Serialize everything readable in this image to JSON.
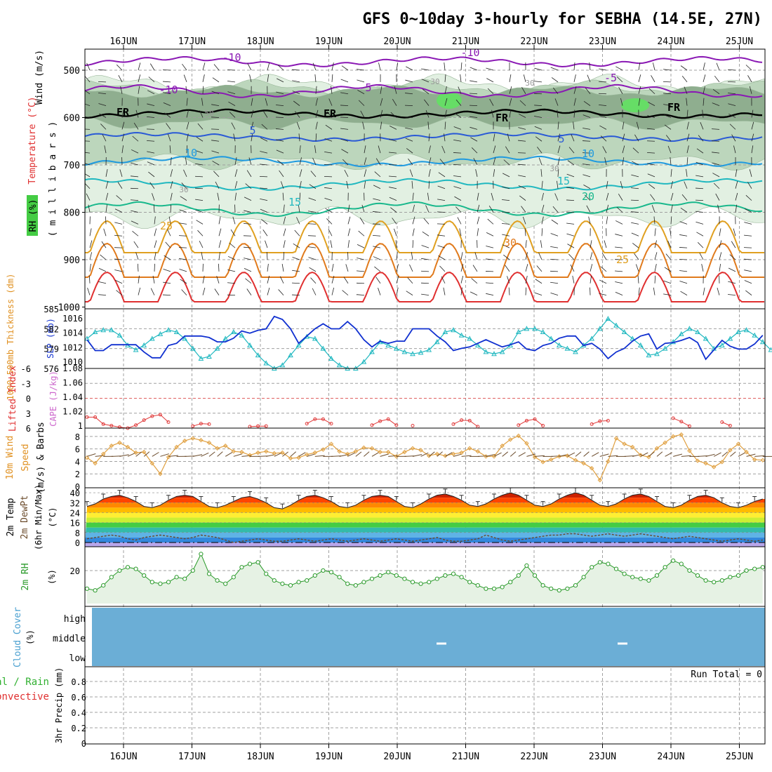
{
  "title": "GFS 0~10day 3-hourly for SEBHA (14.5E, 27N)",
  "date_labels": [
    "16JUN",
    "17JUN",
    "18JUN",
    "19JUN",
    "20JUN",
    "21JUN",
    "22JUN",
    "23JUN",
    "24JUN",
    "25JUN"
  ],
  "colors": {
    "bg": "#ffffff",
    "grid": "#a0a0a0",
    "axis": "#000000",
    "temp_purple": "#8a18b4",
    "freeze": "#000000",
    "temp_blue": "#2a5ad6",
    "temp_sky": "#1f9ae0",
    "temp_cyan": "#20b8c0",
    "temp_green": "#19b88c",
    "temp_orange": "#e0a020",
    "temp_dorange": "#e07a1c",
    "temp_red": "#e03030",
    "rh_light": "#e2f0e2",
    "rh_mid": "#bcd6bc",
    "rh_dark": "#8fae8f",
    "rh_bright": "#66dd66",
    "thick": "#20b8c0",
    "slp": "#1030d0",
    "li": "#e03a3a",
    "cape": "#cc66cc",
    "wind": "#e0a040",
    "barb": "#6a4a2a",
    "rh2m": "#2a9a2a",
    "rh2m_fill": "#e6f2e4",
    "cloud": "#6baed6",
    "precip_total": "#30b030",
    "precip_conv": "#e03030"
  },
  "panels": {
    "upper": {
      "ylabel_rh": "RH (%)",
      "ylabel_temp": "Temperature (°C)",
      "ylabel_wind": "Wind (m/s)",
      "ylabel_p": "( m i l l i b a r s )",
      "yticks": [
        "500",
        "600",
        "700",
        "800",
        "900",
        "1000"
      ],
      "contour_labels": [
        "-10",
        "-10",
        "-10",
        "5",
        "-5",
        "FR",
        "FR",
        "FR",
        "FR",
        "5",
        "5",
        "10",
        "10",
        "15",
        "15",
        "20",
        "25",
        "30",
        "25",
        "30",
        "30",
        "30",
        "50",
        "30"
      ]
    },
    "slp": {
      "ylabel_thick": "1000-500mb Thickness (dm)",
      "ylabel_slp": "SLP (mb)",
      "left_ticks": [
        "585",
        "582",
        "579",
        "576"
      ],
      "right_ticks": [
        "1016",
        "1014",
        "1012",
        "1010"
      ]
    },
    "li": {
      "ylabel_li": "Lifted Index",
      "ylabel_cape": "CAPE (J/kg)",
      "left_ticks": [
        "-6",
        "-3",
        "0",
        "3",
        "6"
      ],
      "right_ticks": [
        "1.08",
        "1.06",
        "1.04",
        "1.02",
        "1"
      ]
    },
    "wind10": {
      "ylabel1": "10m Wind",
      "ylabel2": "Speed",
      "ylabel3": "(m/s) & Barbs",
      "ticks": [
        "8",
        "6",
        "4",
        "2",
        "0"
      ]
    },
    "temp2m": {
      "ylabel1": "2m Temp",
      "ylabel2": "2m DewPt",
      "ylabel3": "(6hr Min/Max)",
      "ylabel4": "(°C)",
      "ticks": [
        "40",
        "32",
        "24",
        "16",
        "8",
        "0"
      ]
    },
    "rh2m": {
      "ylabel1": "2m RH",
      "ylabel2": "(%)",
      "ticks": [
        "20"
      ]
    },
    "cloud": {
      "ylabel1": "Cloud Cover",
      "ylabel2": "(%)",
      "levels": [
        "high",
        "middle",
        "low"
      ]
    },
    "precip": {
      "ylabel1": "Total / Rain",
      "ylabel2": "Convective",
      "ylabel3": "3hr Precip (mm)",
      "run_total": "Run Total = 0",
      "ticks": [
        "0.8",
        "0.6",
        "0.4",
        "0.2",
        "0"
      ]
    }
  },
  "chart_data": [
    {
      "type": "line",
      "title": "",
      "xlabel": "",
      "series": [
        {
          "name": "1000-500mb Thickness (dm)",
          "values": [
            580.5,
            581.5,
            581.8,
            581.8,
            581,
            579.5,
            578.8,
            579.5,
            580.5,
            581.2,
            581.8,
            581.5,
            580.5,
            579,
            577.5,
            577.8,
            579,
            580.5,
            581.5,
            581,
            579.5,
            578,
            576.8,
            576,
            576.5,
            578,
            579.5,
            580.8,
            580.5,
            579,
            577.5,
            576.5,
            576,
            576,
            577,
            578.5,
            580,
            579.5,
            579,
            578.5,
            578.2,
            578.4,
            578.8,
            580,
            581.5,
            581.8,
            581,
            580.5,
            579.5,
            578.5,
            578.2,
            578.5,
            579.5,
            581.5,
            582,
            582,
            581.5,
            580.5,
            579.5,
            579,
            578.5,
            579.5,
            580.5,
            582,
            583.5,
            582.5,
            581.5,
            580.5,
            579.5,
            578,
            578.2,
            579,
            580,
            581.2,
            582,
            581.5,
            580.5,
            579,
            579.5,
            580.5,
            581.5,
            581.8,
            581,
            580,
            578.8
          ]
        },
        {
          "name": "SLP (mb)",
          "values": [
            1013,
            1011.5,
            1011.5,
            1012.3,
            1012.3,
            1012.3,
            1012.3,
            1011.3,
            1010.5,
            1010.5,
            1012.2,
            1012.5,
            1013.5,
            1013.5,
            1013.5,
            1013.3,
            1012.7,
            1012.7,
            1013.2,
            1014.2,
            1013.9,
            1014.3,
            1014.5,
            1016.2,
            1015.8,
            1014.5,
            1012.5,
            1013.5,
            1014.5,
            1015.2,
            1014.5,
            1014.5,
            1015.5,
            1014.5,
            1013,
            1012,
            1012.8,
            1012.5,
            1012.8,
            1012.8,
            1014.5,
            1014.5,
            1014.5,
            1013.5,
            1012.7,
            1011.5,
            1011.8,
            1012,
            1012.5,
            1013,
            1012.5,
            1012,
            1012.3,
            1012.7,
            1011.7,
            1011.5,
            1012.2,
            1012.5,
            1013.2,
            1013.5,
            1013.5,
            1012.2,
            1012.5,
            1011.7,
            1010.4,
            1011.3,
            1011.8,
            1012.8,
            1013.5,
            1013.8,
            1011.7,
            1012.5,
            1012.6,
            1012.9,
            1013.3,
            1012.6,
            1010.3,
            1011.6,
            1012.9,
            1012.1,
            1011.7,
            1011.7,
            1012.4,
            1013.6
          ]
        }
      ],
      "ylim": [
        576,
        585
      ]
    },
    {
      "type": "line",
      "title": "",
      "series": [
        {
          "name": "Lifted Index",
          "values": [
            3.8,
            3.8,
            5.2,
            5.5,
            5.8,
            6,
            5.4,
            4.4,
            3.6,
            3.3,
            4.8,
            null,
            null,
            5.6,
            5.1,
            5.2,
            null,
            null,
            null,
            null,
            5.7,
            5.6,
            5.6,
            null,
            null,
            null,
            null,
            5.1,
            4.2,
            4.2,
            5.1,
            null,
            null,
            null,
            null,
            5.4,
            4.6,
            4.2,
            5.4,
            null,
            5.5,
            null,
            null,
            null,
            null,
            5.2,
            4.4,
            4.5,
            5.7,
            null,
            null,
            null,
            null,
            5.4,
            4.5,
            4.2,
            5.5,
            null,
            null,
            null,
            null,
            null,
            5.2,
            4.6,
            4.5,
            null,
            null,
            null,
            null,
            null,
            null,
            null,
            4.0,
            4.7,
            5.6,
            null,
            null,
            null,
            4.8,
            5.5
          ]
        }
      ],
      "ylim": [
        6,
        -6
      ]
    },
    {
      "type": "line",
      "title": "",
      "series": [
        {
          "name": "10m Wind Speed (m/s)",
          "values": [
            4.6,
            3.7,
            5.2,
            6.5,
            7.0,
            6.3,
            5.4,
            5.5,
            3.7,
            2.0,
            4.7,
            6.3,
            7.3,
            7.7,
            7.4,
            7.0,
            6.1,
            6.5,
            5.6,
            5.5,
            5.0,
            5.4,
            5.6,
            5.3,
            5.4,
            4.5,
            4.6,
            5.1,
            5.4,
            5.9,
            6.8,
            5.6,
            5.2,
            5.6,
            6.2,
            6.1,
            5.5,
            5.5,
            4.8,
            5.5,
            6.1,
            5.8,
            4.9,
            5.2,
            4.9,
            5.2,
            5.4,
            6.1,
            5.6,
            4.8,
            4.8,
            6.5,
            7.5,
            8.1,
            6.9,
            4.7,
            3.9,
            4.3,
            4.8,
            4.9,
            4.2,
            3.7,
            2.9,
            1.0,
            4.0,
            7.7,
            6.8,
            6.3,
            5.0,
            4.7,
            6.1,
            7.0,
            8.0,
            8.3,
            5.7,
            4.1,
            3.7,
            3.1,
            3.9,
            5.8,
            6.8,
            5.5,
            4.3,
            4.2
          ]
        }
      ],
      "ylim": [
        0,
        9
      ]
    },
    {
      "type": "area",
      "title": "",
      "series": [
        {
          "name": "2m Temp (°C)",
          "values": [
            29,
            31,
            35,
            37,
            38,
            36,
            33,
            29,
            28,
            30,
            34,
            37,
            38,
            37,
            33,
            29,
            28,
            30,
            33,
            36,
            37,
            35,
            32,
            28,
            27,
            30,
            34,
            37,
            38,
            36,
            33,
            29,
            28,
            30,
            34,
            37,
            38,
            37,
            33,
            29,
            28,
            31,
            35,
            38,
            39,
            37,
            34,
            30,
            29,
            31,
            35,
            38,
            40,
            38,
            34,
            30,
            29,
            31,
            35,
            38,
            40,
            38,
            34,
            30,
            29,
            31,
            35,
            38,
            39,
            37,
            33,
            29,
            28,
            30,
            34,
            37,
            38,
            36,
            32,
            29,
            28,
            30,
            33,
            35
          ]
        },
        {
          "name": "2m DewPt (°C)",
          "values": [
            3,
            4,
            5,
            6,
            5,
            3,
            2,
            4,
            5,
            6,
            5,
            4,
            3,
            4,
            6,
            5,
            4,
            2,
            0,
            1,
            2,
            3,
            2,
            1,
            1,
            2,
            3,
            2,
            1,
            2,
            3,
            2,
            1,
            2,
            3,
            2,
            1,
            2,
            3,
            2,
            1,
            2,
            3,
            4,
            2,
            1,
            1,
            2,
            3,
            6,
            4,
            2,
            1,
            2,
            3,
            4,
            5,
            6,
            6,
            7,
            7,
            6,
            5,
            6,
            7,
            6,
            5,
            6,
            7,
            6,
            5,
            4,
            3,
            4,
            5,
            4,
            3,
            2,
            1,
            2,
            3,
            2,
            1,
            2
          ]
        }
      ],
      "ylim": [
        0,
        44
      ]
    },
    {
      "type": "line",
      "title": "",
      "series": [
        {
          "name": "2m RH (%)",
          "values": [
            9,
            8,
            11,
            16,
            20,
            22,
            21,
            17,
            13,
            12,
            13,
            16,
            15,
            20,
            30,
            18,
            14,
            12,
            16,
            22,
            24,
            25,
            18,
            14,
            12,
            11,
            13,
            14,
            17,
            20,
            19,
            16,
            12,
            11,
            13,
            15,
            17,
            19,
            17,
            15,
            13,
            12,
            13,
            15,
            17,
            18,
            16,
            13,
            11,
            9,
            9,
            10,
            13,
            17,
            23,
            17,
            11,
            9,
            8,
            9,
            11,
            16,
            22,
            25,
            24,
            21,
            18,
            16,
            15,
            14,
            17,
            22,
            26,
            24,
            20,
            17,
            14,
            13,
            14,
            16,
            17,
            20,
            21,
            22
          ]
        }
      ],
      "ylim": [
        0,
        34
      ]
    },
    {
      "type": "bar",
      "title": "",
      "series": [
        {
          "name": "Total / Rain (mm)",
          "values": [
            0,
            0,
            0,
            0,
            0,
            0,
            0,
            0,
            0,
            0,
            0,
            0,
            0,
            0,
            0,
            0,
            0,
            0,
            0,
            0,
            0,
            0,
            0,
            0,
            0,
            0,
            0,
            0,
            0,
            0,
            0,
            0,
            0,
            0,
            0,
            0,
            0,
            0,
            0,
            0,
            0,
            0,
            0,
            0,
            0,
            0,
            0,
            0,
            0,
            0,
            0,
            0,
            0,
            0,
            0,
            0,
            0,
            0,
            0,
            0,
            0,
            0,
            0,
            0,
            0,
            0,
            0,
            0,
            0,
            0,
            0,
            0,
            0,
            0,
            0,
            0,
            0,
            0,
            0,
            0,
            0,
            0,
            0,
            0
          ]
        }
      ],
      "ylim": [
        0,
        1
      ]
    }
  ]
}
